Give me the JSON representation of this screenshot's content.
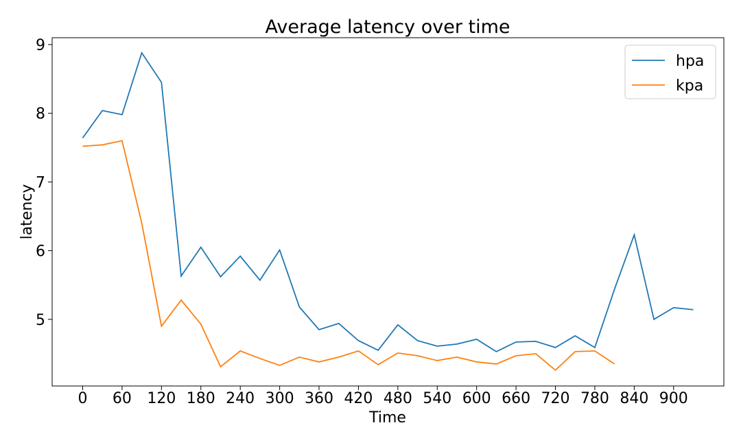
{
  "chart_data": {
    "type": "line",
    "title": "Average latency over time",
    "xlabel": "Time",
    "ylabel": "latency",
    "series": [
      {
        "name": "hpa",
        "color": "#1f77b4",
        "x": [
          0,
          30,
          60,
          90,
          120,
          150,
          180,
          210,
          240,
          270,
          300,
          330,
          360,
          390,
          420,
          450,
          480,
          510,
          540,
          570,
          600,
          630,
          660,
          690,
          720,
          750,
          780,
          810,
          840,
          870,
          900,
          930
        ],
        "values": [
          7.64,
          8.04,
          7.98,
          8.88,
          8.45,
          5.63,
          6.05,
          5.62,
          5.92,
          5.57,
          6.01,
          5.18,
          4.85,
          4.94,
          4.69,
          4.55,
          4.92,
          4.69,
          4.61,
          4.64,
          4.71,
          4.53,
          4.67,
          4.68,
          4.59,
          4.76,
          4.59,
          5.44,
          6.23,
          5.0,
          5.17,
          5.14
        ]
      },
      {
        "name": "kpa",
        "color": "#ff7f0e",
        "x": [
          0,
          30,
          60,
          90,
          120,
          150,
          180,
          210,
          240,
          270,
          300,
          330,
          360,
          390,
          420,
          450,
          480,
          510,
          540,
          570,
          600,
          630,
          660,
          690,
          720,
          750,
          780,
          810
        ],
        "values": [
          7.52,
          7.54,
          7.6,
          6.4,
          4.9,
          5.28,
          4.93,
          4.31,
          4.54,
          4.43,
          4.33,
          4.45,
          4.38,
          4.45,
          4.54,
          4.34,
          4.51,
          4.47,
          4.4,
          4.45,
          4.38,
          4.35,
          4.47,
          4.5,
          4.26,
          4.53,
          4.54,
          4.35
        ]
      }
    ],
    "xlim": [
      -46.5,
      976.5
    ],
    "xticks": [
      0,
      60,
      120,
      180,
      240,
      300,
      360,
      420,
      480,
      540,
      600,
      660,
      720,
      780,
      840,
      900
    ],
    "ylim": [
      4.03,
      9.1
    ],
    "yticks": [
      5,
      6,
      7,
      8,
      9
    ],
    "legend": "upper right"
  }
}
